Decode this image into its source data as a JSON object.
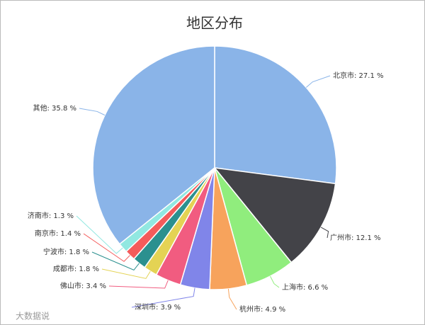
{
  "chart_data": {
    "type": "pie",
    "title": "地区分布",
    "watermark": "大数据说",
    "values": [
      27.1,
      12.1,
      6.6,
      4.9,
      3.9,
      3.4,
      1.8,
      1.8,
      1.4,
      1.3,
      35.8
    ],
    "value_labels": [
      "北京市: 27.1 %",
      "广州市: 12.1 %",
      "上海市: 6.6 %",
      "杭州市: 4.9 %",
      "深圳市: 3.9 %",
      "佛山市: 3.4 %",
      "成都市: 1.8 %",
      "宁波市: 1.8 %",
      "南京市: 1.4 %",
      "济南市: 1.3 %",
      "其他: 35.8 %"
    ],
    "colors": [
      "#8ab4e8",
      "#434348",
      "#90ed7d",
      "#f7a35c",
      "#8085e9",
      "#f15c80",
      "#e4d354",
      "#2b908f",
      "#f45b5b",
      "#91e8e1",
      "#8ab4e8"
    ]
  }
}
